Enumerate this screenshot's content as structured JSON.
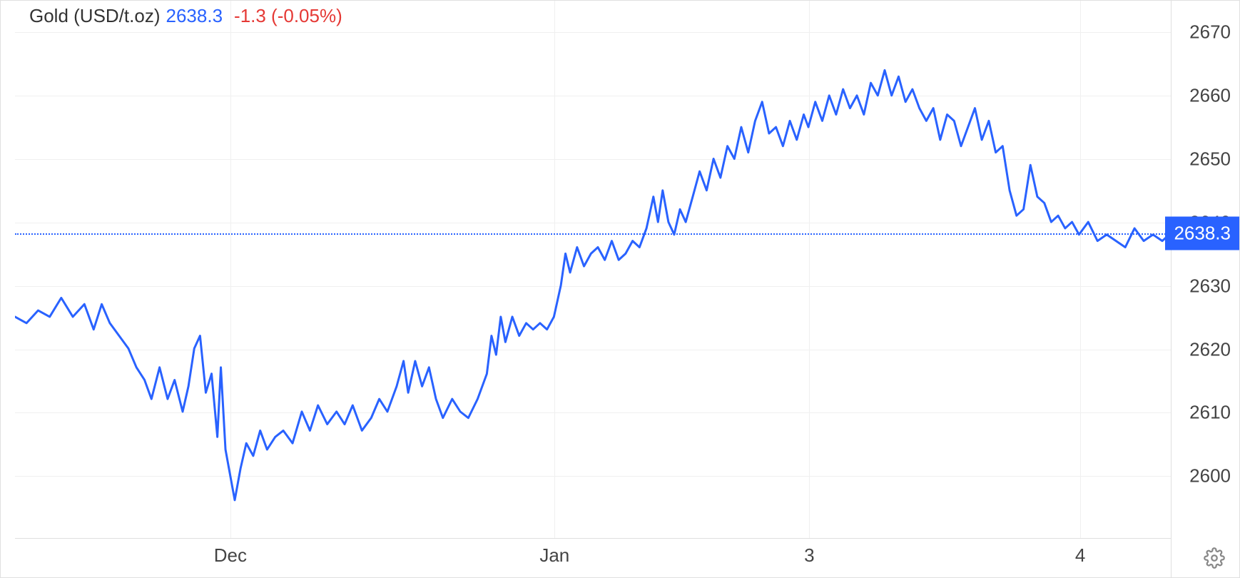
{
  "header": {
    "title": "Gold (USD/t.oz)",
    "price": "2638.3",
    "change": "-1.3 (-0.05%)"
  },
  "chart": {
    "type": "line",
    "line_color": "#2962ff",
    "line_width": 3,
    "background_color": "#ffffff",
    "grid_color": "#f0f0f0",
    "border_color": "#e0e0e0",
    "current_value": 2638.3,
    "current_badge_bg": "#2962ff",
    "current_badge_fg": "#ffffff",
    "dotted_line_color": "#2962ff",
    "y_axis": {
      "min": 2590,
      "max": 2675,
      "ticks": [
        2600,
        2610,
        2620,
        2630,
        2640,
        2650,
        2660,
        2670
      ],
      "label_color": "#444444",
      "label_fontsize": 26
    },
    "x_axis": {
      "ticks": [
        {
          "label": "Dec",
          "pos": 0.186
        },
        {
          "label": "Jan",
          "pos": 0.466
        },
        {
          "label": "3",
          "pos": 0.686
        },
        {
          "label": "4",
          "pos": 0.92
        }
      ],
      "label_color": "#444444",
      "label_fontsize": 26
    },
    "series": [
      [
        0.0,
        2625
      ],
      [
        0.01,
        2624
      ],
      [
        0.02,
        2626
      ],
      [
        0.03,
        2625
      ],
      [
        0.04,
        2628
      ],
      [
        0.05,
        2625
      ],
      [
        0.06,
        2627
      ],
      [
        0.068,
        2623
      ],
      [
        0.075,
        2627
      ],
      [
        0.082,
        2624
      ],
      [
        0.09,
        2622
      ],
      [
        0.098,
        2620
      ],
      [
        0.105,
        2617
      ],
      [
        0.112,
        2615
      ],
      [
        0.118,
        2612
      ],
      [
        0.125,
        2617
      ],
      [
        0.132,
        2612
      ],
      [
        0.138,
        2615
      ],
      [
        0.145,
        2610
      ],
      [
        0.15,
        2614
      ],
      [
        0.155,
        2620
      ],
      [
        0.16,
        2622
      ],
      [
        0.165,
        2613
      ],
      [
        0.17,
        2616
      ],
      [
        0.175,
        2606
      ],
      [
        0.178,
        2617
      ],
      [
        0.182,
        2604
      ],
      [
        0.186,
        2600
      ],
      [
        0.19,
        2596
      ],
      [
        0.195,
        2601
      ],
      [
        0.2,
        2605
      ],
      [
        0.206,
        2603
      ],
      [
        0.212,
        2607
      ],
      [
        0.218,
        2604
      ],
      [
        0.225,
        2606
      ],
      [
        0.232,
        2607
      ],
      [
        0.24,
        2605
      ],
      [
        0.248,
        2610
      ],
      [
        0.255,
        2607
      ],
      [
        0.262,
        2611
      ],
      [
        0.27,
        2608
      ],
      [
        0.278,
        2610
      ],
      [
        0.285,
        2608
      ],
      [
        0.292,
        2611
      ],
      [
        0.3,
        2607
      ],
      [
        0.308,
        2609
      ],
      [
        0.315,
        2612
      ],
      [
        0.322,
        2610
      ],
      [
        0.33,
        2614
      ],
      [
        0.336,
        2618
      ],
      [
        0.34,
        2613
      ],
      [
        0.346,
        2618
      ],
      [
        0.352,
        2614
      ],
      [
        0.358,
        2617
      ],
      [
        0.364,
        2612
      ],
      [
        0.37,
        2609
      ],
      [
        0.378,
        2612
      ],
      [
        0.385,
        2610
      ],
      [
        0.392,
        2609
      ],
      [
        0.4,
        2612
      ],
      [
        0.408,
        2616
      ],
      [
        0.412,
        2622
      ],
      [
        0.416,
        2619
      ],
      [
        0.42,
        2625
      ],
      [
        0.424,
        2621
      ],
      [
        0.43,
        2625
      ],
      [
        0.436,
        2622
      ],
      [
        0.442,
        2624
      ],
      [
        0.448,
        2623
      ],
      [
        0.454,
        2624
      ],
      [
        0.46,
        2623
      ],
      [
        0.466,
        2625
      ],
      [
        0.472,
        2630
      ],
      [
        0.476,
        2635
      ],
      [
        0.48,
        2632
      ],
      [
        0.486,
        2636
      ],
      [
        0.492,
        2633
      ],
      [
        0.498,
        2635
      ],
      [
        0.504,
        2636
      ],
      [
        0.51,
        2634
      ],
      [
        0.516,
        2637
      ],
      [
        0.522,
        2634
      ],
      [
        0.528,
        2635
      ],
      [
        0.534,
        2637
      ],
      [
        0.54,
        2636
      ],
      [
        0.546,
        2639
      ],
      [
        0.552,
        2644
      ],
      [
        0.556,
        2640
      ],
      [
        0.56,
        2645
      ],
      [
        0.565,
        2640
      ],
      [
        0.57,
        2638
      ],
      [
        0.575,
        2642
      ],
      [
        0.58,
        2640
      ],
      [
        0.586,
        2644
      ],
      [
        0.592,
        2648
      ],
      [
        0.598,
        2645
      ],
      [
        0.604,
        2650
      ],
      [
        0.61,
        2647
      ],
      [
        0.616,
        2652
      ],
      [
        0.622,
        2650
      ],
      [
        0.628,
        2655
      ],
      [
        0.634,
        2651
      ],
      [
        0.64,
        2656
      ],
      [
        0.646,
        2659
      ],
      [
        0.652,
        2654
      ],
      [
        0.658,
        2655
      ],
      [
        0.664,
        2652
      ],
      [
        0.67,
        2656
      ],
      [
        0.676,
        2653
      ],
      [
        0.682,
        2657
      ],
      [
        0.686,
        2655
      ],
      [
        0.692,
        2659
      ],
      [
        0.698,
        2656
      ],
      [
        0.704,
        2660
      ],
      [
        0.71,
        2657
      ],
      [
        0.716,
        2661
      ],
      [
        0.722,
        2658
      ],
      [
        0.728,
        2660
      ],
      [
        0.734,
        2657
      ],
      [
        0.74,
        2662
      ],
      [
        0.746,
        2660
      ],
      [
        0.752,
        2664
      ],
      [
        0.758,
        2660
      ],
      [
        0.764,
        2663
      ],
      [
        0.77,
        2659
      ],
      [
        0.776,
        2661
      ],
      [
        0.782,
        2658
      ],
      [
        0.788,
        2656
      ],
      [
        0.794,
        2658
      ],
      [
        0.8,
        2653
      ],
      [
        0.806,
        2657
      ],
      [
        0.812,
        2656
      ],
      [
        0.818,
        2652
      ],
      [
        0.824,
        2655
      ],
      [
        0.83,
        2658
      ],
      [
        0.836,
        2653
      ],
      [
        0.842,
        2656
      ],
      [
        0.848,
        2651
      ],
      [
        0.854,
        2652
      ],
      [
        0.86,
        2645
      ],
      [
        0.866,
        2641
      ],
      [
        0.872,
        2642
      ],
      [
        0.878,
        2649
      ],
      [
        0.884,
        2644
      ],
      [
        0.89,
        2643
      ],
      [
        0.896,
        2640
      ],
      [
        0.902,
        2641
      ],
      [
        0.908,
        2639
      ],
      [
        0.914,
        2640
      ],
      [
        0.92,
        2638
      ],
      [
        0.928,
        2640
      ],
      [
        0.936,
        2637
      ],
      [
        0.944,
        2638
      ],
      [
        0.952,
        2637
      ],
      [
        0.96,
        2636
      ],
      [
        0.968,
        2639
      ],
      [
        0.976,
        2637
      ],
      [
        0.984,
        2638
      ],
      [
        0.992,
        2637
      ],
      [
        1.0,
        2638.3
      ]
    ]
  },
  "icons": {
    "settings": "gear-icon"
  }
}
